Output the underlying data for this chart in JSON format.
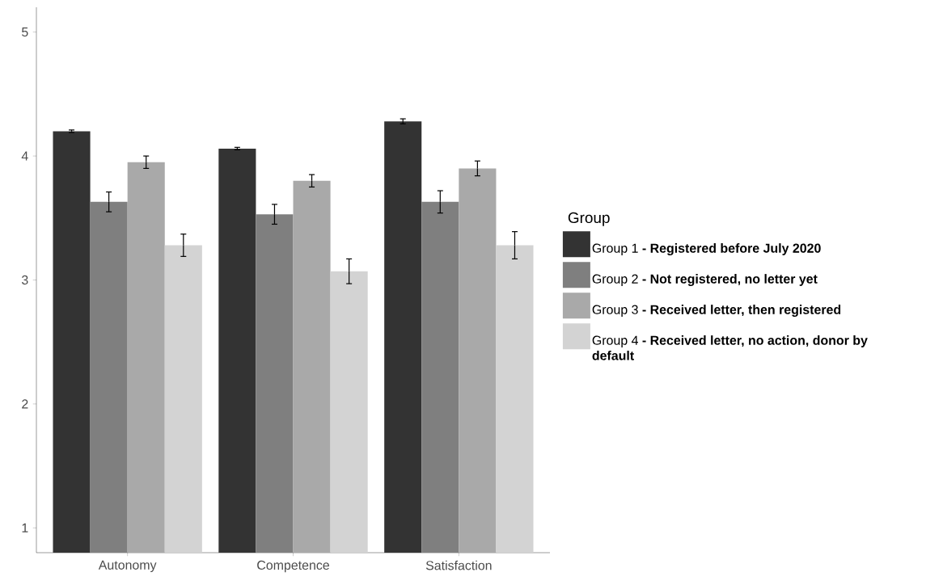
{
  "chart_data": {
    "type": "bar",
    "categories": [
      "Autonomy",
      "Competence",
      "Satisfaction"
    ],
    "legend_title": "Group",
    "legend": "right",
    "grid": false,
    "ylim": [
      0.8,
      5.2
    ],
    "yticks": [
      1,
      2,
      3,
      4,
      5
    ],
    "series": [
      {
        "name": "Group 1  **- Registered before July 2020**",
        "color": "#333333",
        "values": [
          4.2,
          4.06,
          4.28
        ],
        "errors": [
          0.01,
          0.01,
          0.02
        ]
      },
      {
        "name": "Group 2  **- Not registered, no letter yet**",
        "color": "#7f7f7f",
        "values": [
          3.63,
          3.53,
          3.63
        ],
        "errors": [
          0.08,
          0.08,
          0.09
        ]
      },
      {
        "name": "Group 3  **- Received letter, then registered**",
        "color": "#a9a9a9",
        "values": [
          3.95,
          3.8,
          3.9
        ],
        "errors": [
          0.05,
          0.05,
          0.06
        ]
      },
      {
        "name": "Group 4  **- Received letter, no action, donor by default**",
        "color": "#d3d3d3",
        "values": [
          3.28,
          3.07,
          3.28
        ],
        "errors": [
          0.09,
          0.1,
          0.11
        ]
      }
    ]
  }
}
